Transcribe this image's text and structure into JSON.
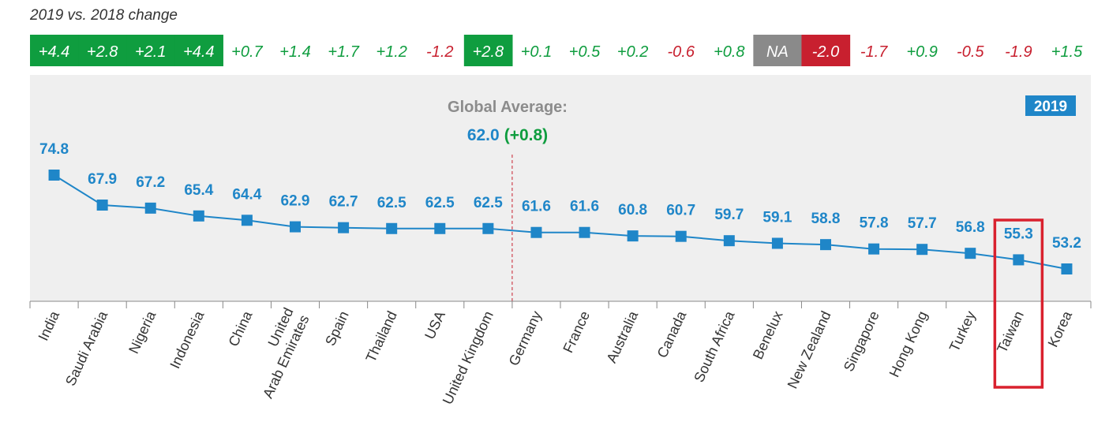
{
  "header": {
    "title": "2019 vs. 2018 change"
  },
  "colors": {
    "positive": "#0f9d3f",
    "negative": "#c8202f",
    "na_fill": "#8a8a8a",
    "highlight_green": "#0f9d3f",
    "highlight_red": "#c8202f",
    "line": "#1f86c8",
    "marker": "#1f86c8",
    "plot_bg": "#efefef",
    "avg_line": "#c8202f",
    "highlight_box": "#d9212e",
    "axis": "#888888",
    "badge_bg": "#1f86c8"
  },
  "global_average": {
    "label": "Global Average:",
    "value": "62.0",
    "change": "(+0.8)"
  },
  "year_badge": "2019",
  "highlighted_category": "Taiwan",
  "changes": [
    {
      "text": "+4.4",
      "style": "highlight-positive"
    },
    {
      "text": "+2.8",
      "style": "highlight-positive"
    },
    {
      "text": "+2.1",
      "style": "highlight-positive"
    },
    {
      "text": "+4.4",
      "style": "highlight-positive"
    },
    {
      "text": "+0.7",
      "style": "positive"
    },
    {
      "text": "+1.4",
      "style": "positive"
    },
    {
      "text": "+1.7",
      "style": "positive"
    },
    {
      "text": "+1.2",
      "style": "positive"
    },
    {
      "text": "-1.2",
      "style": "negative"
    },
    {
      "text": "+2.8",
      "style": "highlight-positive"
    },
    {
      "text": "+0.1",
      "style": "positive"
    },
    {
      "text": "+0.5",
      "style": "positive"
    },
    {
      "text": "+0.2",
      "style": "positive"
    },
    {
      "text": "-0.6",
      "style": "negative"
    },
    {
      "text": "+0.8",
      "style": "positive"
    },
    {
      "text": "NA",
      "style": "na"
    },
    {
      "text": "-2.0",
      "style": "highlight-negative"
    },
    {
      "text": "-1.7",
      "style": "negative"
    },
    {
      "text": "+0.9",
      "style": "positive"
    },
    {
      "text": "-0.5",
      "style": "negative"
    },
    {
      "text": "-1.9",
      "style": "negative"
    },
    {
      "text": "+1.5",
      "style": "positive"
    }
  ],
  "chart_data": {
    "type": "line",
    "categories": [
      "India",
      "Saudi Arabia",
      "Nigeria",
      "Indonesia",
      "China",
      "United\nArab Emirates",
      "Spain",
      "Thailand",
      "USA",
      "United Kingdom",
      "Germany",
      "France",
      "Australia",
      "Canada",
      "South Africa",
      "Benelux",
      "New Zealand",
      "Singapore",
      "Hong Kong",
      "Turkey",
      "Taiwan",
      "Korea"
    ],
    "values": [
      74.8,
      67.9,
      67.2,
      65.4,
      64.4,
      62.9,
      62.7,
      62.5,
      62.5,
      62.5,
      61.6,
      61.6,
      60.8,
      60.7,
      59.7,
      59.1,
      58.8,
      57.8,
      57.7,
      56.8,
      55.3,
      53.2
    ],
    "value_labels": [
      "74.8",
      "67.9",
      "67.2",
      "65.4",
      "64.4",
      "62.9",
      "62.7",
      "62.5",
      "62.5",
      "62.5",
      "61.6",
      "61.6",
      "60.8",
      "60.7",
      "59.7",
      "59.1",
      "58.8",
      "57.8",
      "57.7",
      "56.8",
      "55.3",
      "53.2"
    ],
    "title": "",
    "xlabel": "",
    "ylabel": "",
    "ylim": [
      45,
      82
    ],
    "grid": false,
    "legend": "none",
    "reference_line": {
      "after_index": 9,
      "style": "dashed"
    }
  }
}
